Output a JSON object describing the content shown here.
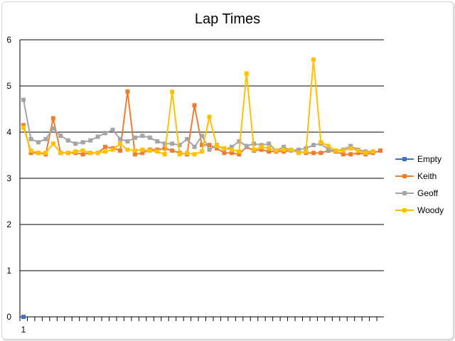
{
  "chart_data": {
    "type": "line",
    "title": "Lap Times",
    "xlabel": "",
    "ylabel": "",
    "ylim": [
      0,
      6
    ],
    "yticks": [
      0,
      1,
      2,
      3,
      4,
      5,
      6
    ],
    "x_tick_labels": [
      "1"
    ],
    "num_laps": 49,
    "grid": true,
    "legend_position": "right",
    "series": [
      {
        "name": "Empty",
        "color": "#4472c4",
        "values": [
          0
        ]
      },
      {
        "name": "Keith",
        "color": "#ed7d31",
        "values": [
          4.15,
          3.55,
          3.55,
          3.52,
          4.3,
          3.55,
          3.55,
          3.55,
          3.52,
          3.55,
          3.55,
          3.68,
          3.65,
          3.6,
          4.88,
          3.52,
          3.55,
          3.62,
          3.62,
          3.65,
          3.6,
          3.55,
          3.52,
          4.58,
          3.72,
          3.72,
          3.65,
          3.55,
          3.55,
          3.52,
          3.68,
          3.6,
          3.62,
          3.58,
          3.58,
          3.58,
          3.6,
          3.58,
          3.55,
          3.55,
          3.55,
          3.6,
          3.58,
          3.52,
          3.52,
          3.55,
          3.52,
          3.55,
          3.6
        ]
      },
      {
        "name": "Geoff",
        "color": "#a5a5a5",
        "values": [
          4.7,
          3.85,
          3.78,
          3.85,
          4.08,
          3.92,
          3.82,
          3.75,
          3.78,
          3.82,
          3.9,
          3.98,
          4.05,
          3.85,
          3.8,
          3.88,
          3.92,
          3.88,
          3.8,
          3.75,
          3.75,
          3.72,
          3.85,
          3.68,
          3.92,
          3.62,
          3.72,
          3.62,
          3.68,
          3.8,
          3.7,
          3.75,
          3.72,
          3.75,
          3.6,
          3.68,
          3.6,
          3.62,
          3.65,
          3.72,
          3.75,
          3.62,
          3.6,
          3.62,
          3.7,
          3.62,
          3.58,
          3.58
        ]
      },
      {
        "name": "Woody",
        "color": "#ffc000",
        "values": [
          4.1,
          3.6,
          3.55,
          3.55,
          3.75,
          3.55,
          3.55,
          3.58,
          3.6,
          3.55,
          3.55,
          3.58,
          3.62,
          3.75,
          3.62,
          3.6,
          3.62,
          3.6,
          3.58,
          3.52,
          4.87,
          3.52,
          3.55,
          3.52,
          3.58,
          4.33,
          3.7,
          3.65,
          3.62,
          3.58,
          5.27,
          3.62,
          3.68,
          3.65,
          3.6,
          3.62,
          3.62,
          3.55,
          3.58,
          5.57,
          3.78,
          3.7,
          3.6,
          3.6,
          3.65,
          3.6,
          3.55,
          3.58
        ]
      }
    ]
  }
}
